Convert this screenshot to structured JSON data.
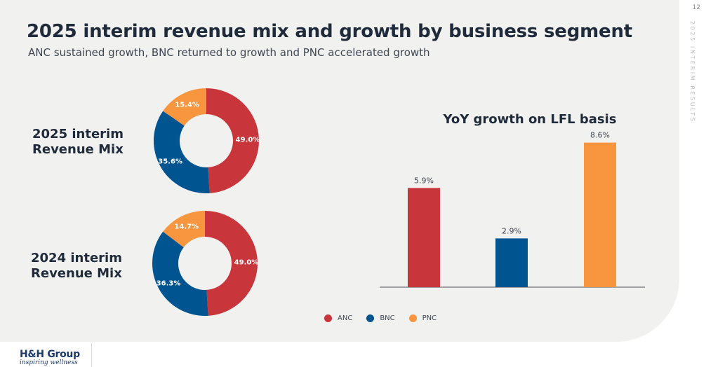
{
  "page": {
    "number": "12",
    "side_label": "2025 INTERIM RESULTS",
    "title": "2025 interim revenue mix and growth by business segment",
    "subtitle": "ANC sustained growth, BNC returned to growth and PNC accelerated growth"
  },
  "colors": {
    "ANC": "#c8353b",
    "BNC": "#005490",
    "PNC": "#f7963f",
    "panel": "#f1f1f0"
  },
  "logo": {
    "name": "H&H Group",
    "tagline": "inspiring wellness"
  },
  "chart_data": [
    {
      "type": "pie",
      "donut": true,
      "title": "2025 interim Revenue Mix",
      "title_lines": [
        "2025 interim",
        "Revenue Mix"
      ],
      "slices": [
        {
          "name": "ANC",
          "value": 49.0,
          "label": "49.0%"
        },
        {
          "name": "BNC",
          "value": 35.6,
          "label": "35.6%"
        },
        {
          "name": "PNC",
          "value": 15.4,
          "label": "15.4%"
        }
      ]
    },
    {
      "type": "pie",
      "donut": true,
      "title": "2024 interim Revenue Mix",
      "title_lines": [
        "2024 interim",
        "Revenue Mix"
      ],
      "slices": [
        {
          "name": "ANC",
          "value": 49.0,
          "label": "49.0%"
        },
        {
          "name": "BNC",
          "value": 36.3,
          "label": "36.3%"
        },
        {
          "name": "PNC",
          "value": 14.7,
          "label": "14.7%"
        }
      ]
    },
    {
      "type": "bar",
      "title": "YoY growth on LFL basis",
      "categories": [
        "ANC",
        "BNC",
        "PNC"
      ],
      "values": [
        5.9,
        2.9,
        8.6
      ],
      "value_labels": [
        "5.9%",
        "2.9%",
        "8.6%"
      ],
      "ylim": [
        0,
        10
      ],
      "legend": [
        "ANC",
        "BNC",
        "PNC"
      ],
      "legend_position": "bottom",
      "grid": false
    }
  ]
}
